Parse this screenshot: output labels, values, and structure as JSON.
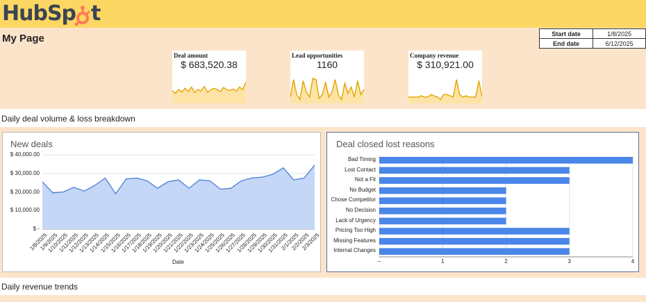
{
  "brand": {
    "name_part1": "Hub",
    "name_part2": "Sp",
    "name_part3": "t",
    "color": "#ff7a59",
    "bar_color": "#fdd764"
  },
  "page": {
    "title": "My Page"
  },
  "date_range": {
    "start_label": "Start date",
    "start_value": "1/8/2025",
    "end_label": "End date",
    "end_value": "6/12/2025"
  },
  "kpis": [
    {
      "label": "Deal amount",
      "value": "$ 683,520.38",
      "spark": [
        0.45,
        0.35,
        0.5,
        0.4,
        0.55,
        0.42,
        0.6,
        0.38,
        0.5,
        0.45,
        0.62,
        0.4,
        0.48,
        0.55,
        0.5,
        0.42,
        0.58,
        0.5,
        0.46,
        0.52,
        0.44,
        0.6,
        0.5,
        0.8
      ]
    },
    {
      "label": "Lead opportunities",
      "value": "1160",
      "spark": [
        0.2,
        0.9,
        0.3,
        0.1,
        0.85,
        0.4,
        0.2,
        0.95,
        0.9,
        0.15,
        0.3,
        0.8,
        0.2,
        0.4,
        0.9,
        0.3,
        0.1,
        0.75,
        0.35,
        0.6,
        0.2,
        0.85,
        0.3,
        0.5
      ]
    },
    {
      "label": "Company revenue",
      "value": "$ 310,921.00",
      "spark": [
        0.2,
        0.2,
        0.2,
        0.2,
        0.25,
        0.2,
        0.2,
        0.3,
        0.25,
        0.2,
        0.1,
        0.3,
        0.3,
        0.25,
        0.2,
        0.9,
        0.3,
        0.2,
        0.25,
        0.2,
        0.2,
        0.2,
        0.85,
        0.2
      ]
    }
  ],
  "sections": {
    "deal_volume": "Daily deal volume & loss breakdown",
    "revenue_trends": "Daily revenue trends"
  },
  "chart_data": [
    {
      "type": "area",
      "title": "New deals",
      "xlabel": "Date",
      "ylabel": "",
      "ylim": [
        0,
        40000
      ],
      "yticks": [
        "$ 40,000.00",
        "$ 30,000.00",
        "$ 20,000.00",
        "$ 10,000.00",
        "$ -"
      ],
      "x": [
        "1/8/2025",
        "1/9/2025",
        "1/10/2025",
        "1/11/2025",
        "1/12/2025",
        "1/13/2025",
        "1/14/2025",
        "1/15/2025",
        "1/16/2025",
        "1/17/2025",
        "1/18/2025",
        "1/19/2025",
        "1/20/2025",
        "1/21/2025",
        "1/22/2025",
        "1/23/2025",
        "1/24/2025",
        "1/25/2025",
        "1/26/2025",
        "1/27/2025",
        "1/28/2025",
        "1/29/2025",
        "1/30/2025",
        "1/31/2025",
        "2/1/2025",
        "2/2/2025",
        "2/3/2025"
      ],
      "values": [
        25500,
        19500,
        20000,
        22500,
        20500,
        23500,
        27500,
        19000,
        27000,
        27500,
        26000,
        22000,
        25500,
        26500,
        22000,
        26500,
        26000,
        21500,
        22000,
        26000,
        27500,
        28000,
        29500,
        33000,
        26500,
        27500,
        34500
      ],
      "color": "#4a7fd6",
      "fill": "#c4d7f6"
    },
    {
      "type": "bar",
      "orientation": "horizontal",
      "title": "Deal closed lost reasons",
      "categories": [
        "Bad Timing",
        "Lost Contact",
        "Not a Fit",
        "No Budget",
        "Chose Competitor",
        "No Decision",
        "Lack of Urgency",
        "Pricing Too High",
        "Missing Features",
        "Internal Changes"
      ],
      "values": [
        4,
        3,
        3,
        2,
        2,
        2,
        2,
        3,
        3,
        3
      ],
      "xlim": [
        0,
        4
      ],
      "xticks": [
        "–",
        "1",
        "2",
        "3",
        "4"
      ],
      "color": "#4a86e8"
    }
  ]
}
